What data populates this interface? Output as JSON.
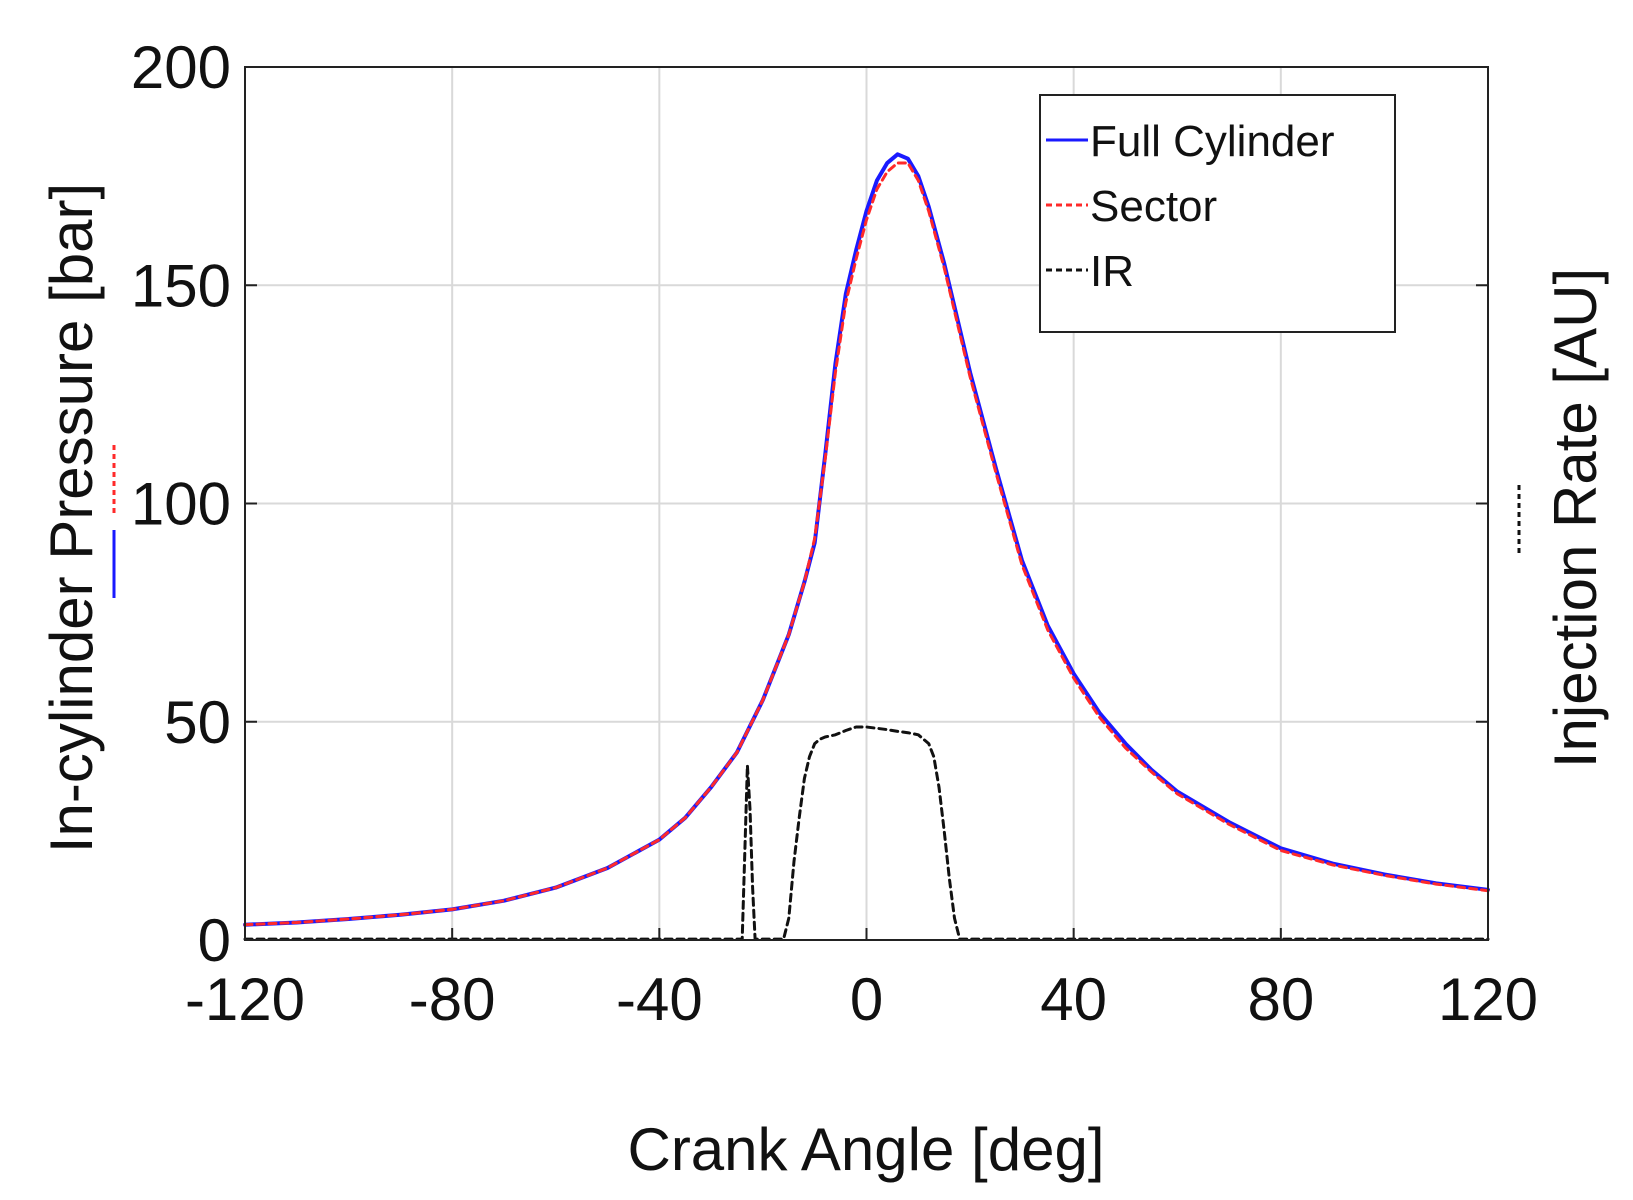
{
  "chart_data": {
    "type": "line",
    "xlabel": "Crank Angle [deg]",
    "ylabel": "In-cylinder Pressure [bar]",
    "y2label": "Injection Rate [AU]",
    "xlim": [
      -120,
      120
    ],
    "ylim": [
      0,
      200
    ],
    "x_ticks": [
      -120,
      -80,
      -40,
      0,
      40,
      80,
      120
    ],
    "x_tick_labels": [
      "-120",
      "-80",
      "-40",
      "0",
      "40",
      "80",
      "120"
    ],
    "y_ticks": [
      0,
      50,
      100,
      150,
      200
    ],
    "y_tick_labels": [
      "0",
      "50",
      "100",
      "150",
      "200"
    ],
    "grid": true,
    "legend_position": "top-right",
    "series": [
      {
        "name": "Full Cylinder",
        "color": "#1a1aff",
        "style": "solid",
        "axis": "left",
        "x": [
          -120,
          -110,
          -100,
          -90,
          -80,
          -70,
          -60,
          -50,
          -40,
          -35,
          -30,
          -25,
          -20,
          -15,
          -12,
          -10,
          -8,
          -6,
          -4,
          -2,
          0,
          2,
          4,
          6,
          8,
          10,
          12,
          15,
          20,
          25,
          30,
          35,
          40,
          45,
          50,
          55,
          60,
          70,
          80,
          90,
          100,
          110,
          120
        ],
        "y": [
          3.5,
          4,
          4.8,
          5.8,
          7,
          9,
          12,
          16.5,
          23,
          28,
          35,
          43,
          55,
          70,
          82,
          91,
          111,
          132,
          148,
          158,
          167,
          174,
          178,
          180,
          179,
          175,
          168,
          155,
          130,
          108,
          87,
          72,
          61,
          52,
          45,
          39,
          34,
          27,
          21,
          17.5,
          15,
          13,
          11.5
        ]
      },
      {
        "name": "Sector",
        "color": "#ff2a2a",
        "style": "dashed",
        "axis": "left",
        "x": [
          -120,
          -110,
          -100,
          -90,
          -80,
          -70,
          -60,
          -50,
          -40,
          -35,
          -30,
          -25,
          -20,
          -15,
          -12,
          -10,
          -8,
          -6,
          -4,
          -2,
          0,
          2,
          4,
          6,
          8,
          10,
          12,
          15,
          20,
          25,
          30,
          35,
          40,
          45,
          50,
          55,
          60,
          70,
          80,
          90,
          100,
          110,
          120
        ],
        "y": [
          3.5,
          4,
          4.8,
          5.8,
          7,
          9,
          12,
          16.5,
          23,
          28,
          35,
          43,
          55,
          70,
          82,
          92,
          110,
          130,
          146,
          156,
          165,
          172,
          176,
          178,
          178,
          174,
          167,
          154,
          129,
          107,
          86,
          71,
          60,
          51,
          44,
          38.5,
          33.5,
          26.5,
          20.5,
          17.2,
          14.8,
          12.8,
          11.3
        ]
      },
      {
        "name": "IR",
        "color": "#111111",
        "style": "dashed",
        "axis": "right",
        "x": [
          -120,
          -24,
          -23.5,
          -23,
          -22.5,
          -22,
          -21.5,
          -20.5,
          -16,
          -15,
          -14,
          -13,
          -12,
          -11,
          -10,
          -9,
          -8,
          -6,
          -4,
          -2,
          0,
          2,
          4,
          6,
          8,
          10,
          12,
          13,
          14,
          15,
          16,
          17,
          18,
          19,
          120
        ],
        "y": [
          0.2,
          0.2,
          20,
          40,
          30,
          12,
          0.2,
          0.2,
          0.2,
          5,
          18,
          28,
          37,
          42,
          45,
          46,
          46.5,
          47,
          48,
          48.8,
          48.8,
          48.5,
          48.2,
          47.8,
          47.5,
          47,
          45,
          42,
          35,
          25,
          14,
          5,
          0.2,
          0.2,
          0.2
        ]
      }
    ]
  }
}
